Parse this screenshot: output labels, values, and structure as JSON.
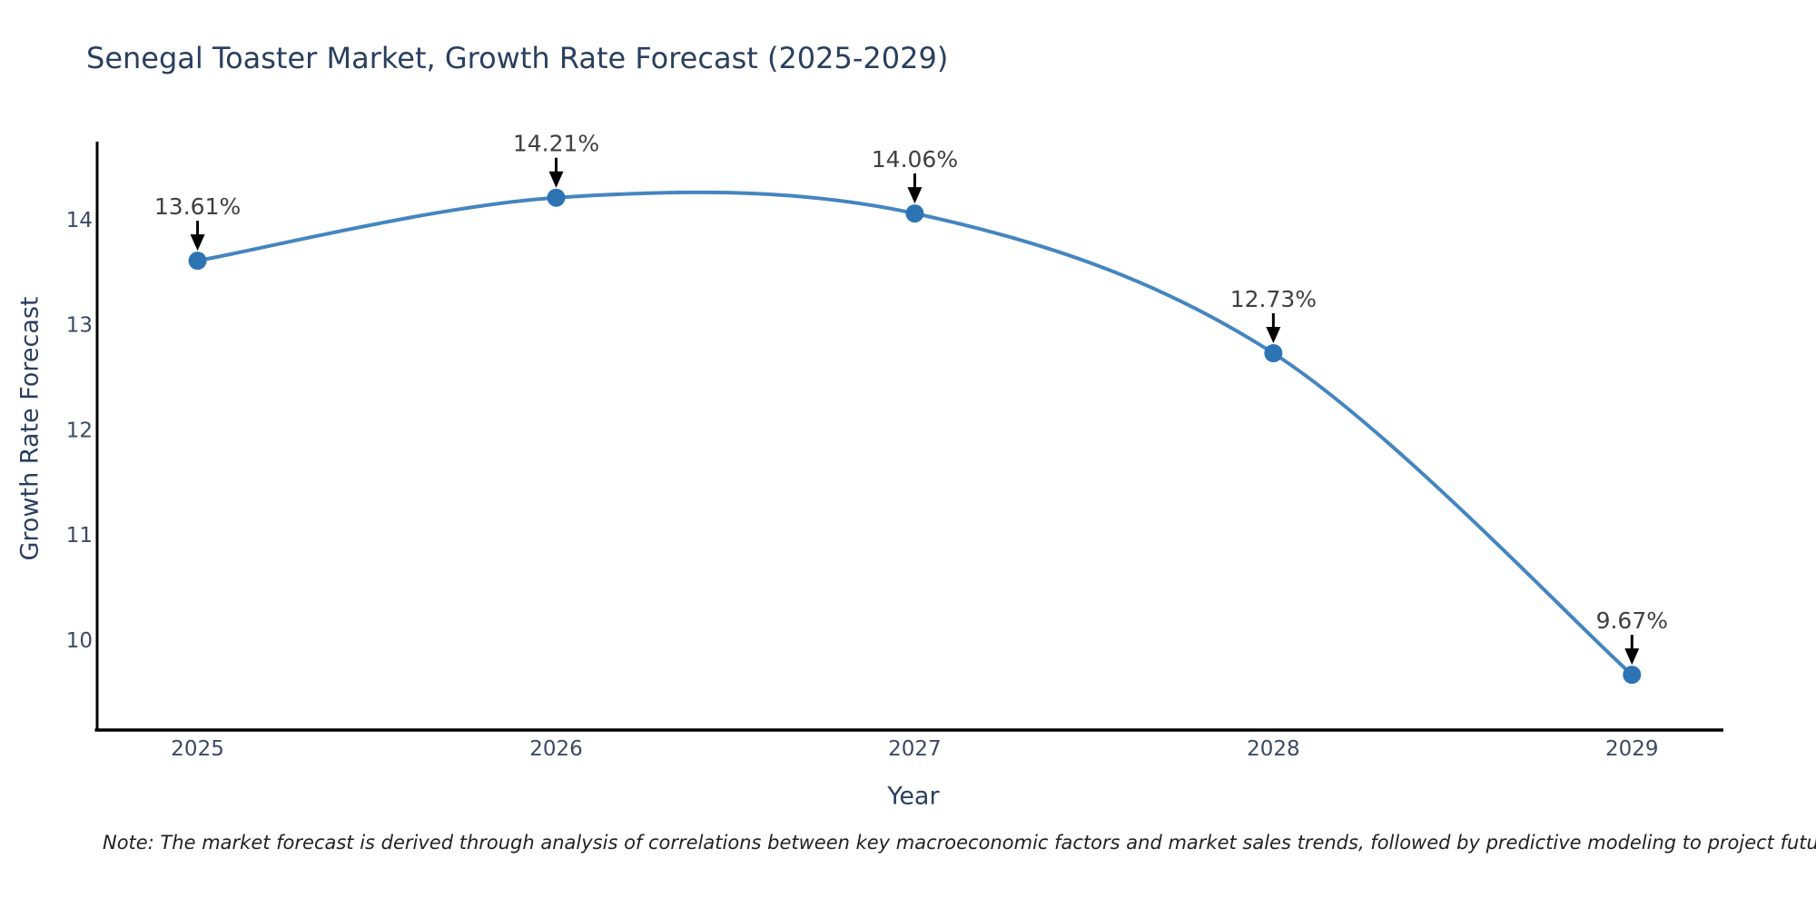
{
  "title": "Senegal Toaster Market, Growth Rate Forecast (2025-2029)",
  "note": "Note: The market forecast is derived through analysis of correlations between key macroeconomic factors and market sales trends, followed by predictive modeling to project future sales",
  "chart_data": {
    "type": "line",
    "title": "Senegal Toaster Market, Growth Rate Forecast (2025-2029)",
    "x": [
      2025,
      2026,
      2027,
      2028,
      2029
    ],
    "series": [
      {
        "name": "Growth Rate Forecast",
        "values": [
          13.61,
          14.21,
          14.06,
          12.73,
          9.67
        ]
      }
    ],
    "point_labels": [
      "13.61%",
      "14.21%",
      "14.06%",
      "12.73%",
      "9.67%"
    ],
    "xlabel": "Year",
    "ylabel": "Growth Rate Forecast",
    "x_ticks": [
      "2025",
      "2026",
      "2027",
      "2028",
      "2029"
    ],
    "y_ticks": [
      14,
      13,
      12,
      11,
      10
    ],
    "xlim": [
      2024.72,
      2029.255
    ],
    "ylim": [
      9.144,
      14.726
    ],
    "grid": false,
    "legend": "none",
    "line_shape": "spline",
    "colors": {
      "line": "#4585c0",
      "marker": "#2d74b5",
      "axis": "#000000",
      "tick_label": "#3b4a63",
      "title": "#2a3f5f",
      "annotation_text": "#404040",
      "annotation_arrow": "#000000",
      "note": "#222222",
      "background": "#ffffff"
    }
  }
}
